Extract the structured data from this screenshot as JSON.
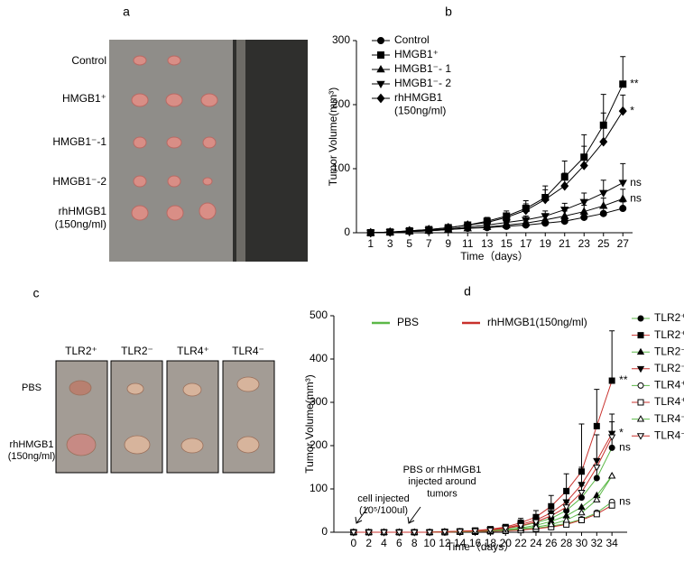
{
  "panel_letters": [
    "a",
    "b",
    "c",
    "d"
  ],
  "photo_a": {
    "row_labels": [
      "Control",
      "HMGB1⁺",
      "HMGB1⁻-1",
      "HMGB1⁻-2",
      "rhHMGB1\n(150ng/ml)"
    ]
  },
  "photo_c": {
    "column_labels": [
      "TLR2⁺",
      "TLR2⁻",
      "TLR4⁺",
      "TLR4⁻"
    ],
    "row_labels": [
      "PBS",
      "rhHMGB1\n(150ng/ml)"
    ]
  },
  "chart_data": [
    {
      "type": "line",
      "x_label": "Time（days）",
      "y_label": "Tumor Volume(mm³)",
      "x": [
        1,
        3,
        5,
        7,
        9,
        11,
        13,
        15,
        17,
        19,
        21,
        23,
        25,
        27
      ],
      "xlim": [
        0,
        28
      ],
      "xticks": [
        1,
        3,
        5,
        7,
        9,
        11,
        13,
        15,
        17,
        19,
        21,
        23,
        25,
        27
      ],
      "ylim": [
        0,
        300
      ],
      "yticks": [
        0,
        100,
        200,
        300
      ],
      "series": [
        {
          "name": "Control",
          "color": "#000000",
          "marker": "circle",
          "filled": true,
          "values": [
            0,
            1,
            2,
            3,
            5,
            7,
            8,
            10,
            12,
            15,
            18,
            24,
            30,
            38
          ],
          "errors": [
            0,
            0,
            1,
            1,
            2,
            3,
            3,
            4,
            5,
            6,
            7,
            8,
            9,
            10
          ]
        },
        {
          "name": "HMGB1⁺",
          "color": "#000000",
          "marker": "square",
          "filled": true,
          "end_label": "**",
          "values": [
            0,
            1,
            3,
            5,
            8,
            12,
            18,
            26,
            38,
            55,
            87,
            118,
            168,
            232
          ],
          "errors": [
            0,
            1,
            1,
            2,
            3,
            4,
            6,
            8,
            12,
            18,
            25,
            35,
            48,
            43
          ]
        },
        {
          "name": "HMGB1⁻- 1",
          "color": "#000000",
          "marker": "triangle",
          "filled": true,
          "end_label": "ns",
          "values": [
            0,
            1,
            2,
            3,
            5,
            7,
            9,
            12,
            15,
            20,
            26,
            33,
            42,
            53
          ],
          "errors": [
            0,
            0,
            1,
            1,
            2,
            3,
            3,
            4,
            5,
            6,
            8,
            10,
            12,
            15
          ]
        },
        {
          "name": "HMGB1⁻- 2",
          "color": "#000000",
          "marker": "triangle-down",
          "filled": true,
          "end_label": "ns",
          "values": [
            0,
            1,
            2,
            4,
            6,
            9,
            12,
            16,
            20,
            26,
            36,
            48,
            62,
            78
          ],
          "errors": [
            0,
            0,
            1,
            1,
            2,
            3,
            4,
            5,
            6,
            8,
            10,
            14,
            20,
            30
          ]
        },
        {
          "name": "rhHMGB1\n(150ng/ml)",
          "color": "#000000",
          "marker": "diamond",
          "filled": true,
          "end_label": "*",
          "values": [
            0,
            1,
            3,
            5,
            8,
            12,
            16,
            24,
            35,
            52,
            73,
            105,
            142,
            190
          ],
          "errors": [
            0,
            1,
            1,
            2,
            3,
            4,
            5,
            7,
            10,
            15,
            20,
            30,
            45,
            25
          ]
        }
      ]
    },
    {
      "type": "line",
      "x_label": "Time（days）",
      "y_label": "Tumor Volume(mm³)",
      "x": [
        0,
        2,
        4,
        6,
        8,
        10,
        12,
        14,
        16,
        18,
        20,
        22,
        24,
        26,
        28,
        30,
        32,
        34
      ],
      "xlim": [
        -2,
        36
      ],
      "xticks": [
        0,
        2,
        4,
        6,
        8,
        10,
        12,
        14,
        16,
        18,
        20,
        22,
        24,
        26,
        28,
        30,
        32,
        34
      ],
      "ylim": [
        0,
        500
      ],
      "yticks": [
        0,
        100,
        200,
        300,
        400,
        500
      ],
      "group_legend": [
        {
          "name": "PBS",
          "color": "#5cb848"
        },
        {
          "name": "rhHMGB1(150ng/ml)",
          "color": "#c8302c"
        }
      ],
      "annotations": [
        "cell injected\n(10⁵/100ul)",
        "PBS or rhHMGB1\ninjected around\ntumors"
      ],
      "series": [
        {
          "name": "TLR2⁺",
          "color": "#5cb848",
          "marker": "circle",
          "filled": true,
          "end_label": "ns",
          "values": [
            0,
            0,
            0,
            0,
            0,
            0,
            1,
            2,
            3,
            5,
            8,
            14,
            22,
            32,
            50,
            80,
            125,
            195
          ],
          "errors": [
            0,
            0,
            0,
            0,
            0,
            0,
            0,
            1,
            1,
            2,
            3,
            5,
            8,
            12,
            18,
            28,
            45,
            60
          ]
        },
        {
          "name": "TLR2⁺",
          "color": "#c8302c",
          "marker": "square",
          "filled": true,
          "end_label": "**",
          "values": [
            0,
            0,
            0,
            0,
            0,
            0,
            1,
            2,
            4,
            7,
            12,
            22,
            35,
            60,
            95,
            140,
            245,
            350
          ],
          "errors": [
            0,
            0,
            0,
            0,
            0,
            0,
            0,
            1,
            2,
            3,
            5,
            10,
            15,
            25,
            40,
            110,
            85,
            115
          ]
        },
        {
          "name": "TLR2⁻",
          "color": "#5cb848",
          "marker": "triangle",
          "filled": true,
          "values": [
            0,
            0,
            0,
            0,
            0,
            0,
            1,
            1,
            2,
            4,
            6,
            10,
            16,
            25,
            38,
            58,
            85,
            130
          ]
        },
        {
          "name": "TLR2⁻",
          "color": "#c8302c",
          "marker": "triangle-down",
          "filled": true,
          "end_label": "*",
          "values": [
            0,
            0,
            0,
            0,
            0,
            0,
            1,
            2,
            3,
            6,
            10,
            18,
            28,
            45,
            70,
            110,
            165,
            228
          ],
          "errors": [
            0,
            0,
            0,
            0,
            0,
            0,
            0,
            1,
            2,
            3,
            5,
            8,
            12,
            18,
            25,
            40,
            60,
            45
          ]
        },
        {
          "name": "TLR4⁺",
          "color": "#5cb848",
          "marker": "circle",
          "filled": false,
          "end_label": "ns",
          "values": [
            0,
            0,
            0,
            0,
            0,
            0,
            0,
            1,
            2,
            3,
            4,
            6,
            9,
            14,
            20,
            30,
            45,
            70
          ]
        },
        {
          "name": "TLR4⁺",
          "color": "#c8302c",
          "marker": "square",
          "filled": false,
          "values": [
            0,
            0,
            0,
            0,
            0,
            0,
            0,
            1,
            1,
            2,
            3,
            5,
            8,
            12,
            18,
            28,
            42,
            62
          ]
        },
        {
          "name": "TLR4⁻",
          "color": "#5cb848",
          "marker": "triangle",
          "filled": false,
          "values": [
            0,
            0,
            0,
            0,
            0,
            0,
            1,
            1,
            2,
            3,
            5,
            8,
            12,
            18,
            28,
            45,
            75,
            130
          ]
        },
        {
          "name": "TLR4⁻",
          "color": "#c8302c",
          "marker": "triangle-down",
          "filled": false,
          "values": [
            0,
            0,
            0,
            0,
            0,
            0,
            1,
            2,
            3,
            5,
            9,
            15,
            24,
            38,
            58,
            92,
            150,
            220
          ]
        }
      ]
    }
  ]
}
